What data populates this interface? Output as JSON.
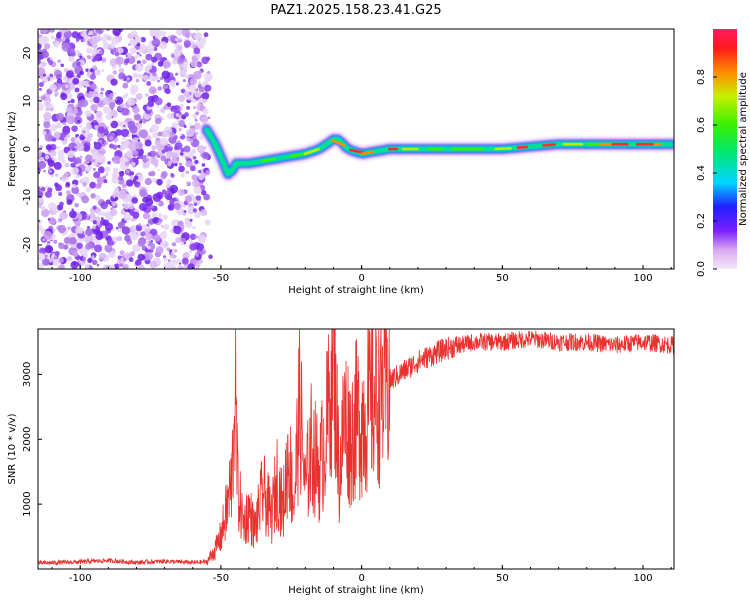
{
  "figure": {
    "title": "PAZ1.2025.158.23.41.G25"
  },
  "chart_data": [
    {
      "type": "heatmap",
      "xlabel": "Height of straight line (km)",
      "ylabel": "Frequency (Hz)",
      "xlim": [
        -115,
        111
      ],
      "ylim": [
        -25,
        25
      ],
      "xticks": [
        -100,
        -50,
        0,
        50,
        100
      ],
      "yticks": [
        -20,
        -10,
        0,
        10,
        20
      ],
      "colorbar": {
        "label": "Normalized spectral amplitude",
        "range": [
          0,
          1
        ],
        "ticks": [
          0.0,
          0.2,
          0.4,
          0.6,
          0.8
        ],
        "colormap": "rainbow"
      },
      "noise_region": {
        "x": [
          -115,
          -55
        ],
        "y": [
          -25,
          25
        ]
      },
      "ridge": [
        {
          "x": -55,
          "y": 4
        },
        {
          "x": -52,
          "y": 1
        },
        {
          "x": -49,
          "y": -3
        },
        {
          "x": -47,
          "y": -6
        },
        {
          "x": -45,
          "y": -3
        },
        {
          "x": -40,
          "y": -3
        },
        {
          "x": -30,
          "y": -2
        },
        {
          "x": -20,
          "y": -1
        },
        {
          "x": -15,
          "y": 0
        },
        {
          "x": -10,
          "y": 2
        },
        {
          "x": -8,
          "y": 2
        },
        {
          "x": -5,
          "y": 0
        },
        {
          "x": 0,
          "y": -1
        },
        {
          "x": 10,
          "y": 0
        },
        {
          "x": 30,
          "y": 0
        },
        {
          "x": 50,
          "y": 0
        },
        {
          "x": 70,
          "y": 1
        },
        {
          "x": 85,
          "y": 1
        },
        {
          "x": 100,
          "y": 1
        },
        {
          "x": 111,
          "y": 1
        }
      ]
    },
    {
      "type": "line",
      "xlabel": "Height of straight line (km)",
      "ylabel": "SNR (10 * v/v)",
      "xlim": [
        -115,
        111
      ],
      "ylim": [
        0,
        3700
      ],
      "xticks": [
        -100,
        -50,
        0,
        50,
        100
      ],
      "yticks": [
        1000,
        2000,
        3000
      ],
      "color": "#e8322f",
      "series": [
        {
          "x": [
            -115,
            -100,
            -90,
            -80,
            -70,
            -60,
            -55,
            -52,
            -50,
            -48,
            -46,
            -45,
            -44,
            -42,
            -40,
            -38,
            -35,
            -32,
            -30,
            -28,
            -26,
            -24,
            -22,
            -20,
            -18,
            -15,
            -12,
            -10,
            -8,
            -6,
            -4,
            -2,
            0,
            5,
            10,
            15,
            20,
            25,
            30,
            35,
            40,
            50,
            60,
            70,
            80,
            90,
            100,
            111
          ],
          "values": [
            90,
            110,
            130,
            100,
            120,
            100,
            110,
            300,
            500,
            900,
            1400,
            3000,
            1200,
            700,
            900,
            600,
            1200,
            800,
            1400,
            900,
            1800,
            1000,
            2600,
            1200,
            1900,
            1500,
            2300,
            3600,
            1400,
            2400,
            2000,
            2300,
            2300,
            2700,
            2900,
            3050,
            3200,
            3300,
            3400,
            3450,
            3500,
            3500,
            3550,
            3500,
            3500,
            3450,
            3500,
            3450
          ]
        }
      ]
    }
  ]
}
